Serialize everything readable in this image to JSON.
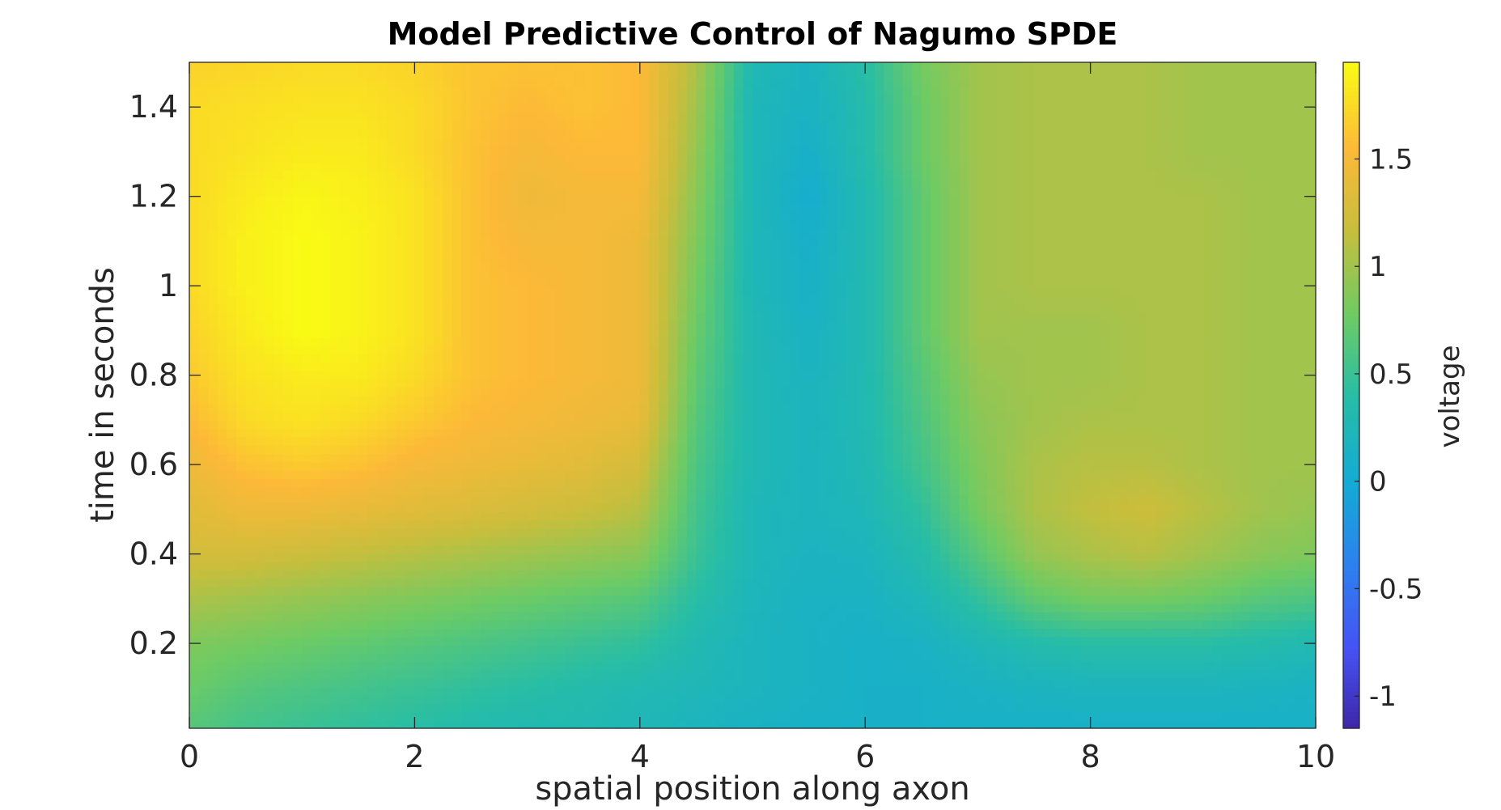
{
  "chart_data": {
    "type": "heatmap",
    "title": "Model Predictive Control of Nagumo SPDE",
    "xlabel": "spatial position along axon",
    "ylabel": "time in seconds",
    "colorbar_label": "voltage",
    "xlim": [
      0,
      10
    ],
    "ylim": [
      0.01,
      1.5
    ],
    "clim": [
      -1.15,
      1.95
    ],
    "xticks": [
      0,
      2,
      4,
      6,
      8,
      10
    ],
    "xtick_labels": [
      "0",
      "2",
      "4",
      "6",
      "8",
      "10"
    ],
    "yticks": [
      0.2,
      0.4,
      0.6,
      0.8,
      1.0,
      1.2,
      1.4
    ],
    "ytick_labels": [
      "0.2",
      "0.4",
      "0.6",
      "0.8",
      "1",
      "1.2",
      "1.4"
    ],
    "cticks": [
      -1,
      -0.5,
      0,
      0.5,
      1,
      1.5
    ],
    "ctick_labels": [
      "-1",
      "-0.5",
      "0",
      "0.5",
      "1",
      "1.5"
    ],
    "colormap": "parula",
    "x": [
      0,
      0.5,
      1,
      1.5,
      2,
      2.5,
      3,
      3.5,
      4,
      4.5,
      5,
      5.5,
      6,
      6.5,
      7,
      7.5,
      8,
      8.5,
      9,
      9.5,
      10
    ],
    "y": [
      0.01,
      0.1,
      0.2,
      0.3,
      0.4,
      0.5,
      0.6,
      0.7,
      0.8,
      0.9,
      1.0,
      1.1,
      1.2,
      1.3,
      1.4,
      1.5
    ],
    "z": [
      [
        0.65,
        0.55,
        0.5,
        0.45,
        0.4,
        0.35,
        0.3,
        0.3,
        0.25,
        0.2,
        0.15,
        0.12,
        0.12,
        0.12,
        0.12,
        0.12,
        0.12,
        0.12,
        0.12,
        0.12,
        0.12
      ],
      [
        0.75,
        0.65,
        0.6,
        0.55,
        0.5,
        0.45,
        0.4,
        0.35,
        0.3,
        0.25,
        0.2,
        0.15,
        0.12,
        0.12,
        0.15,
        0.18,
        0.2,
        0.2,
        0.2,
        0.18,
        0.15
      ],
      [
        0.85,
        0.8,
        0.75,
        0.7,
        0.65,
        0.6,
        0.55,
        0.5,
        0.45,
        0.3,
        0.2,
        0.15,
        0.12,
        0.15,
        0.25,
        0.35,
        0.4,
        0.4,
        0.4,
        0.35,
        0.3
      ],
      [
        1.05,
        1.0,
        0.95,
        0.9,
        0.85,
        0.8,
        0.75,
        0.7,
        0.65,
        0.4,
        0.22,
        0.15,
        0.15,
        0.25,
        0.45,
        0.7,
        0.8,
        0.8,
        0.75,
        0.65,
        0.6
      ],
      [
        1.25,
        1.25,
        1.2,
        1.15,
        1.1,
        1.05,
        1.0,
        0.95,
        0.9,
        0.5,
        0.25,
        0.18,
        0.2,
        0.35,
        0.65,
        0.95,
        1.05,
        1.1,
        1.0,
        0.9,
        0.85
      ],
      [
        1.35,
        1.45,
        1.45,
        1.4,
        1.35,
        1.3,
        1.25,
        1.2,
        1.1,
        0.55,
        0.25,
        0.2,
        0.25,
        0.45,
        0.8,
        1.05,
        1.15,
        1.2,
        1.1,
        1.0,
        0.95
      ],
      [
        1.45,
        1.6,
        1.65,
        1.6,
        1.5,
        1.45,
        1.4,
        1.35,
        1.25,
        0.6,
        0.28,
        0.2,
        0.28,
        0.55,
        0.85,
        1.05,
        1.1,
        1.1,
        1.05,
        1.0,
        1.0
      ],
      [
        1.55,
        1.75,
        1.8,
        1.75,
        1.65,
        1.55,
        1.5,
        1.45,
        1.4,
        0.65,
        0.28,
        0.2,
        0.3,
        0.6,
        0.9,
        1.0,
        1.05,
        1.05,
        1.05,
        1.0,
        1.0
      ],
      [
        1.65,
        1.8,
        1.85,
        1.85,
        1.75,
        1.6,
        1.55,
        1.5,
        1.45,
        0.7,
        0.28,
        0.18,
        0.3,
        0.65,
        0.95,
        1.0,
        1.0,
        1.05,
        1.05,
        1.0,
        1.0
      ],
      [
        1.7,
        1.85,
        1.95,
        1.9,
        1.8,
        1.6,
        1.55,
        1.5,
        1.45,
        0.75,
        0.28,
        0.15,
        0.3,
        0.7,
        1.0,
        1.0,
        1.0,
        1.05,
        1.05,
        1.0,
        1.0
      ],
      [
        1.75,
        1.88,
        1.95,
        1.9,
        1.8,
        1.6,
        1.55,
        1.5,
        1.45,
        0.8,
        0.25,
        0.12,
        0.3,
        0.7,
        1.0,
        1.05,
        1.05,
        1.05,
        1.05,
        1.0,
        1.0
      ],
      [
        1.75,
        1.88,
        1.95,
        1.9,
        1.8,
        1.6,
        1.5,
        1.5,
        1.45,
        0.85,
        0.25,
        0.1,
        0.3,
        0.7,
        1.0,
        1.05,
        1.05,
        1.05,
        1.05,
        1.0,
        1.0
      ],
      [
        1.75,
        1.85,
        1.92,
        1.88,
        1.8,
        1.6,
        1.45,
        1.5,
        1.5,
        0.9,
        0.25,
        0.05,
        0.3,
        0.7,
        1.0,
        1.05,
        1.05,
        1.05,
        1.05,
        1.0,
        1.0
      ],
      [
        1.75,
        1.8,
        1.85,
        1.85,
        1.75,
        1.6,
        1.5,
        1.55,
        1.55,
        0.95,
        0.25,
        0.1,
        0.35,
        0.75,
        1.0,
        1.05,
        1.05,
        1.05,
        1.0,
        1.0,
        1.0
      ],
      [
        1.75,
        1.78,
        1.8,
        1.8,
        1.75,
        1.62,
        1.55,
        1.6,
        1.55,
        1.0,
        0.25,
        0.15,
        0.35,
        0.75,
        1.0,
        1.05,
        1.05,
        1.05,
        1.0,
        1.0,
        1.0
      ],
      [
        1.7,
        1.72,
        1.75,
        1.75,
        1.7,
        1.62,
        1.6,
        1.6,
        1.55,
        1.05,
        0.28,
        0.18,
        0.4,
        0.8,
        1.0,
        1.05,
        1.05,
        1.05,
        1.0,
        1.0,
        1.0
      ]
    ]
  }
}
